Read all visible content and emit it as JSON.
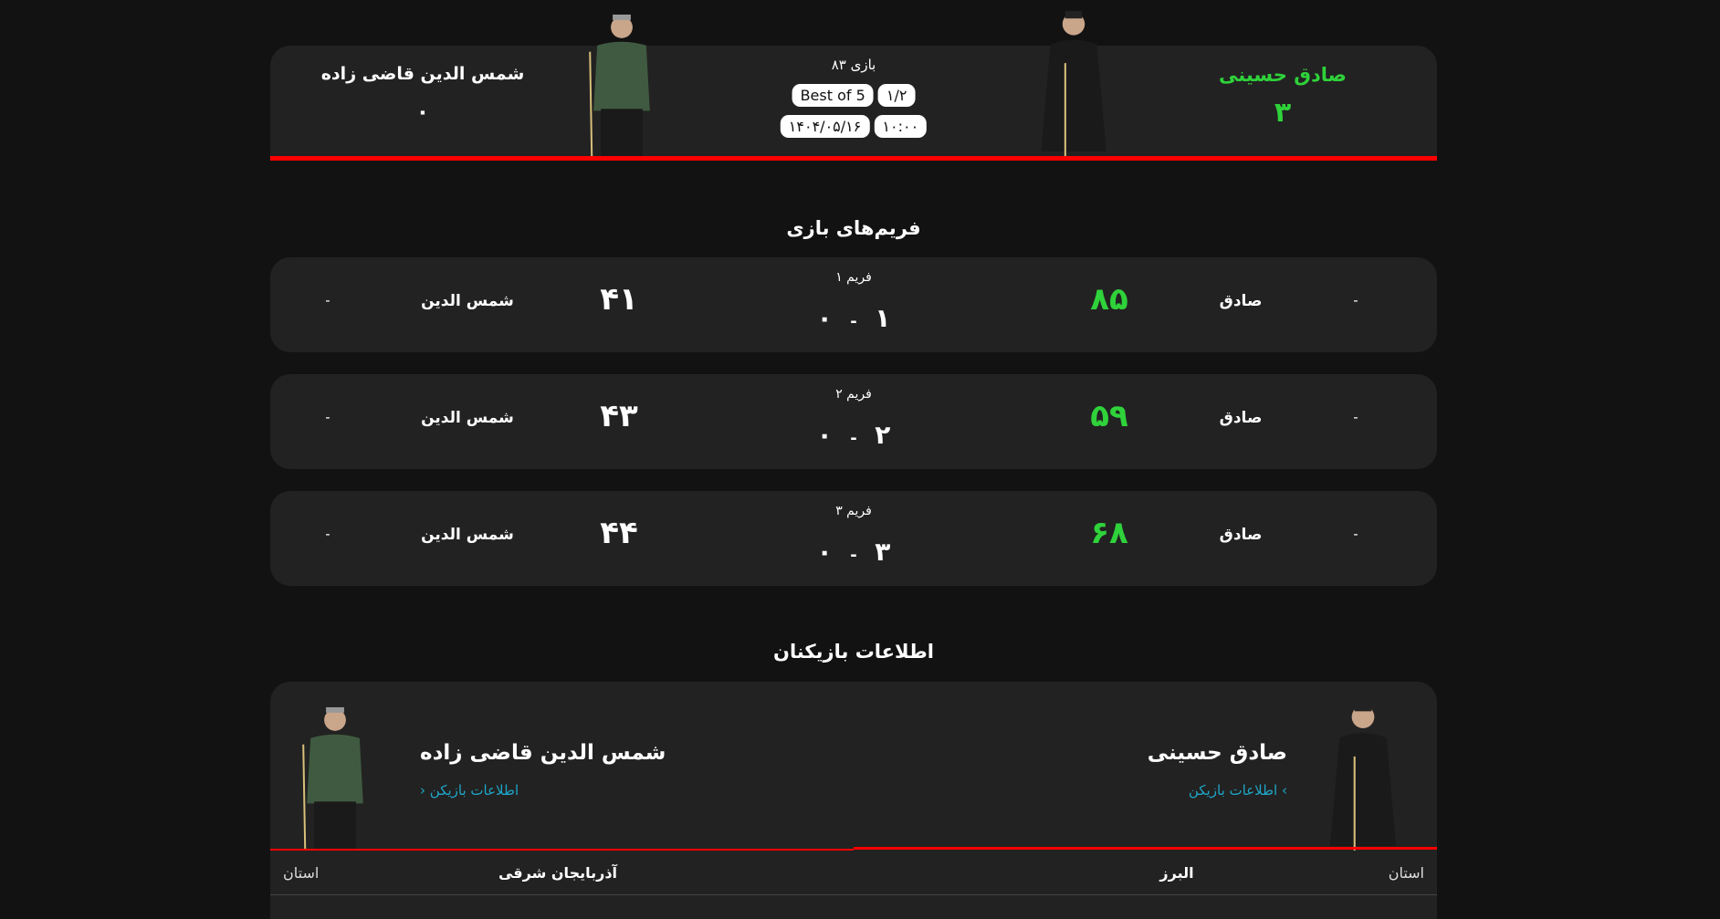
{
  "match": {
    "right_player": "صادق حسینی",
    "right_score": "۳",
    "left_player": "شمس الدین قاضی زاده",
    "left_score": "۰",
    "game_label": "بازی ۸۳",
    "best_of": "Best of 5",
    "round": "۱/۲",
    "date": "۱۴۰۴/۰۵/۱۶",
    "time": "۱۰:۰۰",
    "accent": "#ff0000",
    "win_color": "#2fd23a"
  },
  "frames_title": "فریم‌های بازی",
  "frames": [
    {
      "label": "فریم ۱",
      "right_name": "صادق",
      "right_points": "۸۵",
      "left_name": "شمس الدین",
      "left_points": "۴۱",
      "right_frames": "۱",
      "left_frames": "۰",
      "sep": "-",
      "right_break": "-",
      "left_break": "-"
    },
    {
      "label": "فریم ۲",
      "right_name": "صادق",
      "right_points": "۵۹",
      "left_name": "شمس الدین",
      "left_points": "۴۳",
      "right_frames": "۲",
      "left_frames": "۰",
      "sep": "-",
      "right_break": "-",
      "left_break": "-"
    },
    {
      "label": "فریم ۳",
      "right_name": "صادق",
      "right_points": "۶۸",
      "left_name": "شمس الدین",
      "left_points": "۴۴",
      "right_frames": "۳",
      "left_frames": "۰",
      "sep": "-",
      "right_break": "-",
      "left_break": "-"
    }
  ],
  "info_title": "اطلاعات بازیکنان",
  "info": {
    "right_name": "صادق حسینی",
    "right_link": "اطلاعات بازیکن",
    "left_name": "شمس الدین قاضی زاده",
    "left_link": "اطلاعات بازیکن",
    "province_label": "استان",
    "right_province": "البرز",
    "left_province": "آذربایجان شرقی"
  }
}
